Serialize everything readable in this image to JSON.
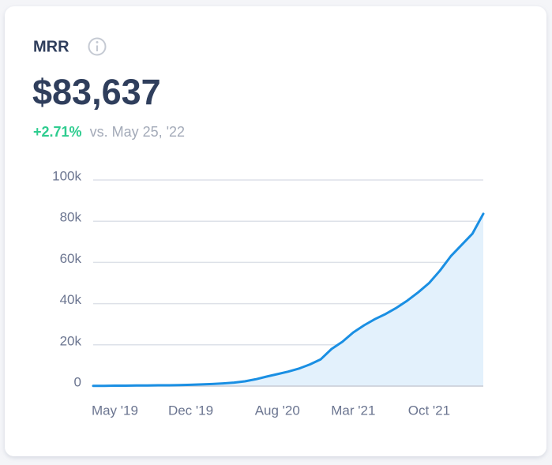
{
  "header": {
    "title": "MRR",
    "value": "$83,637",
    "change": "+2.71%",
    "comparison": "vs. May 25, '22"
  },
  "chart_data": {
    "type": "area",
    "categories": [
      null,
      null,
      "May '19",
      null,
      null,
      null,
      null,
      null,
      null,
      "Dec '19",
      null,
      null,
      null,
      null,
      null,
      null,
      null,
      "Aug '20",
      null,
      null,
      null,
      null,
      null,
      null,
      "Mar '21",
      null,
      null,
      null,
      null,
      null,
      null,
      "Oct '21",
      null,
      null,
      null,
      null,
      null
    ],
    "values": [
      0.1,
      0.1,
      0.2,
      0.2,
      0.3,
      0.3,
      0.4,
      0.4,
      0.5,
      0.6,
      0.8,
      1.0,
      1.3,
      1.7,
      2.3,
      3.3,
      4.6,
      5.8,
      7,
      8.5,
      10.5,
      13,
      18,
      21.5,
      26,
      29.5,
      32.5,
      35,
      38,
      41.5,
      45.5,
      50,
      56,
      63,
      68.5,
      74,
      83.6
    ],
    "color": "#1a8fe3",
    "fill": "#e3f1fc",
    "ylim": [
      0,
      100
    ],
    "yticks": [
      0,
      {
        "value": 20,
        "label": "20k"
      },
      {
        "value": 40,
        "label": "40k"
      },
      {
        "value": 60,
        "label": "60k"
      },
      {
        "value": 80,
        "label": "80k"
      },
      {
        "value": 100,
        "label": "100k"
      }
    ],
    "grid": true
  }
}
